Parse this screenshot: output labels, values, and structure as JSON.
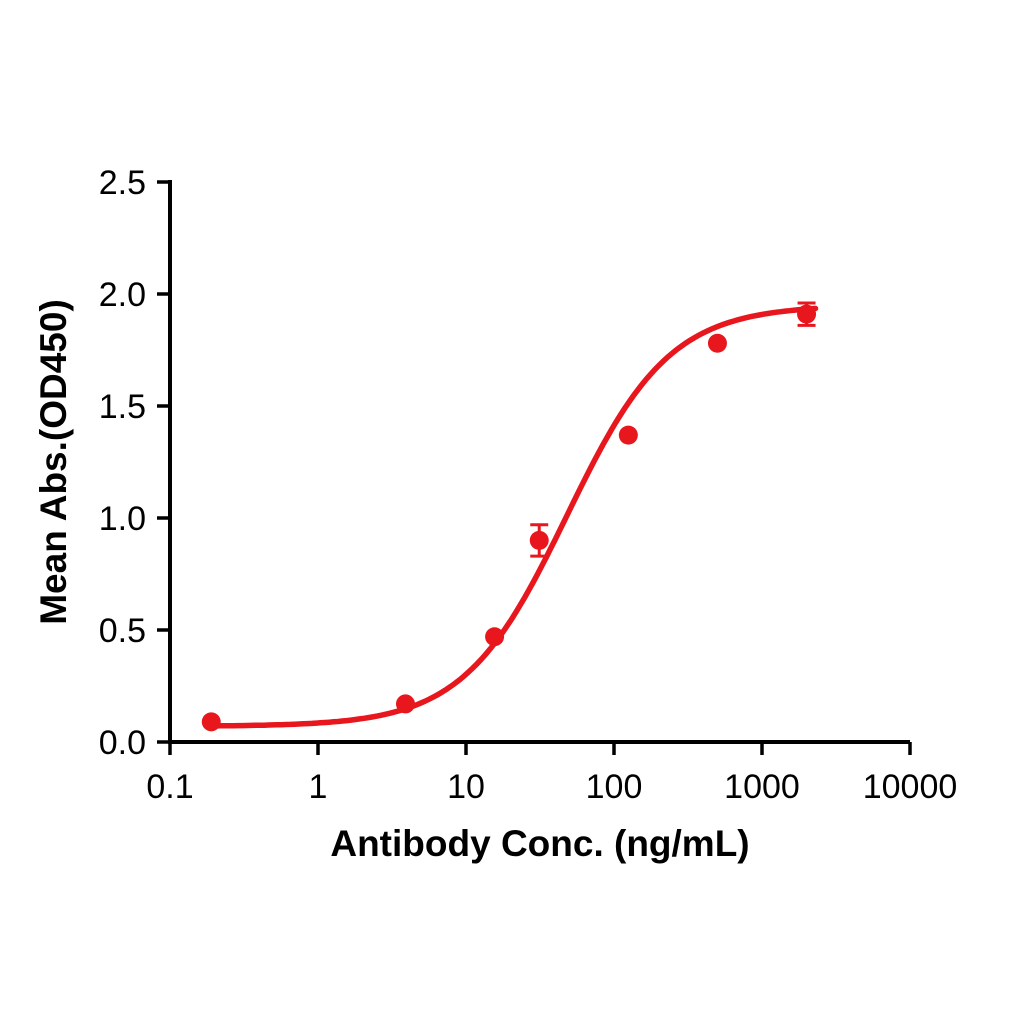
{
  "page": {
    "background": "#ffffff"
  },
  "chart_data": {
    "type": "scatter",
    "title": "",
    "xlabel": "Antibody Conc. (ng/mL)",
    "ylabel": "Mean Abs.(OD450)",
    "x_scale": "log10",
    "xlim": [
      0.1,
      10000
    ],
    "ylim": [
      0.0,
      2.5
    ],
    "grid": false,
    "legend": false,
    "x_ticks": [
      {
        "value": 0.1,
        "label": "0.1"
      },
      {
        "value": 1,
        "label": "1"
      },
      {
        "value": 10,
        "label": "10"
      },
      {
        "value": 100,
        "label": "100"
      },
      {
        "value": 1000,
        "label": "1000"
      },
      {
        "value": 10000,
        "label": "10000"
      }
    ],
    "y_ticks": [
      {
        "value": 0.0,
        "label": "0.0"
      },
      {
        "value": 0.5,
        "label": "0.5"
      },
      {
        "value": 1.0,
        "label": "1.0"
      },
      {
        "value": 1.5,
        "label": "1.5"
      },
      {
        "value": 2.0,
        "label": "2.0"
      },
      {
        "value": 2.5,
        "label": "2.5"
      }
    ],
    "series": [
      {
        "name": "Mean Abs.(OD450)",
        "color": "#e8171d",
        "points": [
          {
            "x": 0.19,
            "y": 0.09,
            "err": 0
          },
          {
            "x": 3.9,
            "y": 0.17,
            "err": 0
          },
          {
            "x": 15.6,
            "y": 0.47,
            "err": 0
          },
          {
            "x": 31.25,
            "y": 0.9,
            "err": 0.07
          },
          {
            "x": 125,
            "y": 1.37,
            "err": 0
          },
          {
            "x": 500,
            "y": 1.78,
            "err": 0
          },
          {
            "x": 2000,
            "y": 1.91,
            "err": 0.05
          }
        ],
        "fit": {
          "model": "4PL",
          "bottom": 0.07,
          "top": 1.95,
          "ec50": 48,
          "hill": 1.25,
          "x_start": 0.18,
          "x_end": 2300
        }
      }
    ]
  }
}
